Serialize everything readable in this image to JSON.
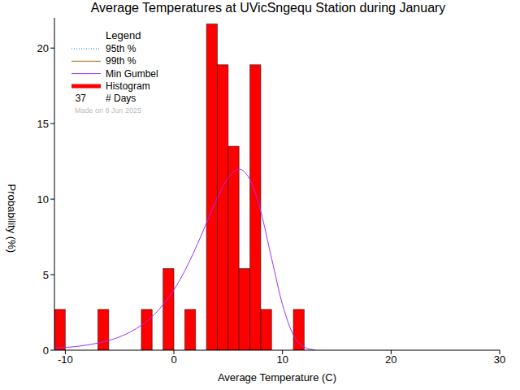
{
  "chart_data": {
    "type": "histogram",
    "title": "Average Temperatures at UVicSngequ Station during January",
    "x_label": "Average Temperature (C)",
    "y_label": "Probability (%)",
    "bins": [
      -11,
      -10,
      -9,
      -8,
      -7,
      -6,
      -5,
      -4,
      -3,
      -2,
      -1,
      0,
      1,
      2,
      3,
      4,
      5,
      6,
      7,
      8,
      9,
      10,
      11,
      12
    ],
    "values": [
      2.7,
      0,
      0,
      0,
      2.7,
      0,
      0,
      0,
      2.7,
      0,
      5.4,
      0,
      2.7,
      0,
      21.6,
      18.9,
      13.5,
      5.4,
      18.9,
      2.7,
      0,
      0,
      2.7
    ],
    "color": "#ff0000",
    "histogram_name": "Histogram",
    "series": [
      {
        "name": "Min Gumbel",
        "color": "#9b30ff",
        "type": "line",
        "x": [
          -11,
          -10,
          -9,
          -8,
          -7,
          -6,
          -5,
          -4,
          -3,
          -2,
          -1,
          0,
          1,
          2,
          3,
          4,
          5,
          6,
          7,
          8,
          9,
          10,
          11,
          12,
          13
        ],
        "values": [
          0.13,
          0.18,
          0.24,
          0.34,
          0.47,
          0.64,
          0.88,
          1.21,
          1.65,
          2.23,
          3.01,
          4.0,
          5.25,
          6.75,
          8.42,
          10.08,
          11.42,
          11.98,
          11.3,
          9.18,
          6.07,
          3.02,
          1.01,
          0.2,
          0.02
        ]
      }
    ],
    "legend_title": "Legend",
    "legend_entries": [
      {
        "name": "95th %",
        "color": "#1f77ff",
        "line_style": "dotted"
      },
      {
        "name": "99th %",
        "color": "#b5651d",
        "line_style": "solid"
      }
    ],
    "days": 37,
    "days_label": "# Days",
    "annotation": "Made on 8 Jun 2025",
    "xlim": [
      -11,
      30
    ],
    "xticks": [
      -10,
      0,
      10,
      20,
      30
    ],
    "ylim": [
      0,
      22
    ],
    "yticks": [
      0,
      5,
      10,
      15,
      20
    ],
    "legend": "upper left"
  }
}
